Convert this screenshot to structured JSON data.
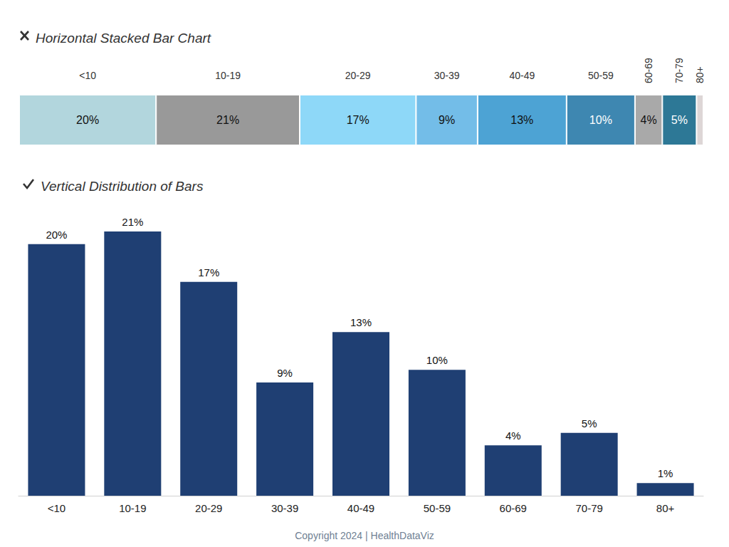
{
  "chart_data": [
    {
      "type": "bar",
      "title": "Horizontal Stacked Bar Chart",
      "orientation": "horizontal",
      "stacked": true,
      "data_labels": true,
      "tick_labels": false,
      "grid": false,
      "categories": [
        null
      ],
      "xlim": [
        0,
        100
      ],
      "series": [
        {
          "name": "<10",
          "color": "#b2d6dd",
          "values": [
            20
          ],
          "value_labels": [
            "20%"
          ]
        },
        {
          "name": "10-19",
          "color": "#999999",
          "values": [
            21
          ],
          "value_labels": [
            "21%"
          ]
        },
        {
          "name": "20-29",
          "color": "#8ed8f8",
          "values": [
            17
          ],
          "value_labels": [
            "17%"
          ]
        },
        {
          "name": "30-39",
          "color": "#73bde8",
          "values": [
            9
          ],
          "value_labels": [
            "9%"
          ]
        },
        {
          "name": "40-49",
          "color": "#4da3d4",
          "values": [
            13
          ],
          "value_labels": [
            "13%"
          ]
        },
        {
          "name": "50-59",
          "color": "#3e87b1",
          "values": [
            10
          ],
          "value_labels": [
            "10%"
          ]
        },
        {
          "name": "60-69",
          "color": "#a9a9a9",
          "values": [
            4
          ],
          "value_labels": [
            "4%"
          ]
        },
        {
          "name": "70-79",
          "color": "#2d7896",
          "values": [
            5
          ],
          "value_labels": [
            "5%"
          ]
        },
        {
          "name": "80+",
          "color": "#ddd6d6",
          "values": [
            1
          ],
          "value_labels": [
            null
          ]
        }
      ]
    },
    {
      "type": "bar",
      "title": "Vertical Distribution of Bars",
      "data_labels": true,
      "tick_labels": "x",
      "grid": false,
      "categories": [
        "<10",
        "10-19",
        "20-29",
        "30-39",
        "40-49",
        "50-59",
        "60-69",
        "70-79",
        "80+"
      ],
      "values": [
        20,
        21,
        17,
        9,
        13,
        10,
        4,
        5,
        1
      ],
      "value_labels": [
        "20%",
        "21%",
        "17%",
        "9%",
        "13%",
        "10%",
        "4%",
        "5%",
        "1%"
      ],
      "color": "#1f3f73",
      "ylim": [
        0,
        21
      ]
    }
  ],
  "footer": "Copyright 2024 | HealthDataViz"
}
